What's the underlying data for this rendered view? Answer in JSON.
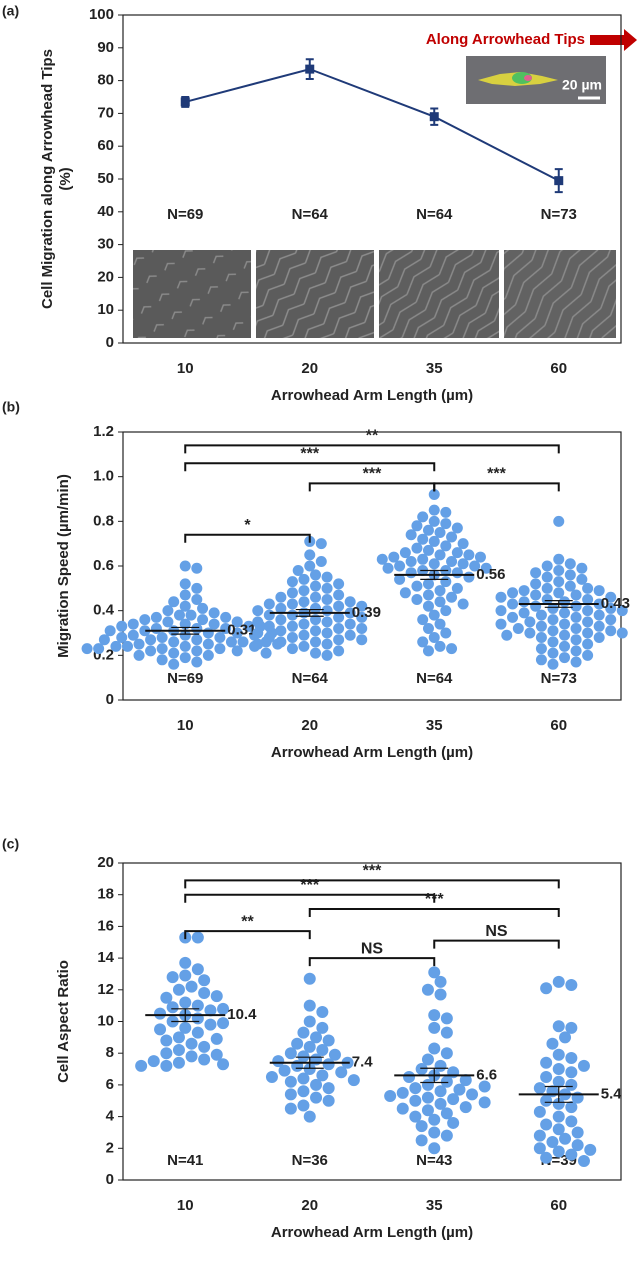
{
  "chart_data": [
    {
      "type": "line",
      "panel_label": "(a)",
      "ylabel": [
        "Cell Migration along Arrowhead Tips",
        "(%)"
      ],
      "xlabel": "Arrowhead Arm Length (µm)",
      "categories": [
        "10",
        "20",
        "35",
        "60"
      ],
      "values": [
        73.5,
        83.5,
        69,
        49.5
      ],
      "errors": [
        1.5,
        3,
        2.5,
        3.5
      ],
      "color": "#1f3a78",
      "ylim": [
        0,
        100
      ],
      "yticks": [
        0,
        10,
        20,
        30,
        40,
        50,
        60,
        70,
        80,
        90,
        100
      ],
      "n_labels": [
        "N=69",
        "N=64",
        "N=64",
        "N=73"
      ],
      "arrow_label": "Along Arrowhead Tips",
      "scale_bar": "20 µm"
    },
    {
      "type": "strip",
      "panel_label": "(b)",
      "ylabel": "Migration Speed (µm/min)",
      "xlabel": "Arrowhead Arm Length (µm)",
      "categories": [
        "10",
        "20",
        "35",
        "60"
      ],
      "color": "#64a0e6",
      "ylim": [
        0,
        1.2
      ],
      "yticks": [
        0,
        0.2,
        0.4,
        0.6,
        0.8,
        {
          "value": 1,
          "label": "1.0"
        },
        1.2
      ],
      "n_labels": [
        "N=69",
        "N=64",
        "N=64",
        "N=73"
      ],
      "groups": [
        {
          "mean": 0.31,
          "error": 0.015,
          "points": [
            0.6,
            0.59,
            0.52,
            0.5,
            0.47,
            0.45,
            0.44,
            0.42,
            0.41,
            0.4,
            0.39,
            0.38,
            0.38,
            0.37,
            0.37,
            0.36,
            0.36,
            0.35,
            0.35,
            0.34,
            0.34,
            0.34,
            0.33,
            0.33,
            0.33,
            0.32,
            0.32,
            0.32,
            0.31,
            0.31,
            0.31,
            0.3,
            0.3,
            0.3,
            0.29,
            0.29,
            0.29,
            0.28,
            0.28,
            0.28,
            0.27,
            0.27,
            0.27,
            0.26,
            0.26,
            0.26,
            0.26,
            0.25,
            0.25,
            0.25,
            0.24,
            0.24,
            0.24,
            0.24,
            0.23,
            0.23,
            0.23,
            0.23,
            0.22,
            0.22,
            0.22,
            0.21,
            0.21,
            0.2,
            0.2,
            0.19,
            0.18,
            0.17,
            0.16
          ]
        },
        {
          "mean": 0.39,
          "error": 0.015,
          "points": [
            0.71,
            0.7,
            0.65,
            0.62,
            0.6,
            0.58,
            0.56,
            0.55,
            0.54,
            0.53,
            0.52,
            0.51,
            0.5,
            0.49,
            0.48,
            0.47,
            0.46,
            0.46,
            0.45,
            0.44,
            0.44,
            0.43,
            0.43,
            0.42,
            0.42,
            0.41,
            0.41,
            0.4,
            0.4,
            0.39,
            0.39,
            0.38,
            0.38,
            0.37,
            0.37,
            0.36,
            0.36,
            0.35,
            0.35,
            0.34,
            0.34,
            0.33,
            0.33,
            0.32,
            0.32,
            0.31,
            0.31,
            0.3,
            0.3,
            0.29,
            0.29,
            0.28,
            0.28,
            0.27,
            0.27,
            0.26,
            0.26,
            0.25,
            0.25,
            0.24,
            0.23,
            0.22,
            0.21,
            0.2
          ]
        },
        {
          "mean": 0.56,
          "error": 0.02,
          "points": [
            0.92,
            0.85,
            0.84,
            0.82,
            0.8,
            0.79,
            0.78,
            0.77,
            0.76,
            0.75,
            0.74,
            0.73,
            0.72,
            0.71,
            0.7,
            0.69,
            0.68,
            0.67,
            0.66,
            0.66,
            0.65,
            0.65,
            0.64,
            0.64,
            0.63,
            0.63,
            0.62,
            0.62,
            0.61,
            0.61,
            0.6,
            0.6,
            0.59,
            0.59,
            0.58,
            0.58,
            0.57,
            0.57,
            0.56,
            0.55,
            0.54,
            0.53,
            0.52,
            0.51,
            0.5,
            0.49,
            0.48,
            0.47,
            0.46,
            0.45,
            0.44,
            0.43,
            0.42,
            0.4,
            0.38,
            0.36,
            0.34,
            0.32,
            0.3,
            0.28,
            0.26,
            0.24,
            0.23,
            0.22
          ]
        },
        {
          "mean": 0.43,
          "error": 0.015,
          "points": [
            0.8,
            0.63,
            0.61,
            0.6,
            0.59,
            0.58,
            0.57,
            0.56,
            0.55,
            0.54,
            0.53,
            0.52,
            0.51,
            0.5,
            0.5,
            0.49,
            0.49,
            0.48,
            0.48,
            0.47,
            0.47,
            0.46,
            0.46,
            0.45,
            0.45,
            0.44,
            0.44,
            0.43,
            0.43,
            0.42,
            0.42,
            0.41,
            0.41,
            0.4,
            0.4,
            0.39,
            0.39,
            0.38,
            0.38,
            0.37,
            0.37,
            0.36,
            0.36,
            0.35,
            0.35,
            0.34,
            0.34,
            0.33,
            0.33,
            0.32,
            0.32,
            0.31,
            0.31,
            0.3,
            0.3,
            0.29,
            0.29,
            0.28,
            0.28,
            0.27,
            0.26,
            0.25,
            0.24,
            0.23,
            0.22,
            0.21,
            0.2,
            0.19,
            0.18,
            0.17,
            0.16,
            0.3,
            0.4
          ]
        }
      ],
      "brackets": [
        {
          "between": [
            "10",
            "60"
          ],
          "y": 1.14,
          "label": "**"
        },
        {
          "between": [
            "10",
            "35"
          ],
          "y": 1.06,
          "label": "***"
        },
        {
          "between": [
            "20",
            "35"
          ],
          "y": 0.97,
          "label": "***"
        },
        {
          "between": [
            "35",
            "60"
          ],
          "y": 0.97,
          "label": "***"
        },
        {
          "between": [
            "10",
            "20"
          ],
          "y": 0.74,
          "label": "*"
        }
      ]
    },
    {
      "type": "strip",
      "panel_label": "(c)",
      "ylabel": "Cell Aspect Ratio",
      "xlabel": "Arrowhead Arm Length (µm)",
      "categories": [
        "10",
        "20",
        "35",
        "60"
      ],
      "color": "#64a0e6",
      "ylim": [
        0,
        20
      ],
      "yticks": [
        0,
        2,
        4,
        6,
        8,
        10,
        12,
        14,
        16,
        18,
        20
      ],
      "n_labels": [
        "N=41",
        "N=36",
        "N=43",
        "N=39"
      ],
      "groups": [
        {
          "mean": 10.4,
          "error": 0.4,
          "points": [
            15.3,
            15.3,
            13.7,
            13.3,
            12.9,
            12.8,
            12.6,
            12.2,
            12.0,
            11.8,
            11.5,
            11.2,
            11.0,
            10.9,
            10.7,
            10.5,
            10.4,
            10.2,
            10.0,
            9.8,
            9.6,
            9.5,
            9.3,
            9.0,
            8.8,
            8.6,
            8.4,
            8.2,
            8.0,
            7.9,
            7.8,
            7.6,
            7.5,
            7.4,
            7.3,
            7.2,
            7.2,
            11.6,
            10.8,
            9.9,
            8.9
          ]
        },
        {
          "mean": 7.4,
          "error": 0.35,
          "points": [
            12.7,
            11.0,
            10.6,
            10.0,
            9.6,
            9.3,
            9.0,
            8.8,
            8.6,
            8.4,
            8.2,
            8.0,
            7.9,
            7.8,
            7.6,
            7.5,
            7.4,
            7.3,
            7.2,
            7.0,
            6.9,
            6.8,
            6.6,
            6.5,
            6.4,
            6.2,
            6.0,
            5.8,
            5.6,
            5.4,
            5.2,
            5.0,
            4.7,
            4.5,
            4.0,
            6.3
          ]
        },
        {
          "mean": 6.6,
          "error": 0.45,
          "points": [
            13.1,
            12.5,
            12.0,
            11.7,
            10.4,
            10.2,
            9.6,
            9.3,
            8.3,
            8.0,
            7.6,
            7.2,
            7.0,
            6.8,
            6.6,
            6.5,
            6.3,
            6.2,
            6.0,
            5.8,
            5.7,
            5.6,
            5.5,
            5.4,
            5.3,
            5.2,
            5.1,
            5.0,
            4.9,
            4.8,
            4.6,
            4.4,
            4.2,
            4.0,
            3.8,
            3.6,
            3.4,
            3.0,
            2.8,
            2.5,
            2.0,
            5.9,
            4.5
          ]
        },
        {
          "mean": 5.4,
          "error": 0.5,
          "points": [
            12.5,
            12.3,
            12.1,
            9.7,
            9.6,
            9.0,
            8.6,
            7.9,
            7.7,
            7.4,
            7.2,
            7.0,
            6.8,
            6.5,
            6.2,
            6.0,
            5.8,
            5.6,
            5.4,
            5.2,
            5.0,
            4.8,
            4.6,
            4.3,
            4.0,
            3.7,
            3.5,
            3.2,
            3.0,
            2.8,
            2.6,
            2.4,
            2.2,
            2.0,
            1.9,
            1.8,
            1.6,
            1.4,
            1.2
          ]
        }
      ],
      "brackets": [
        {
          "between": [
            "10",
            "60"
          ],
          "y": 18.9,
          "label": "***"
        },
        {
          "between": [
            "10",
            "35"
          ],
          "y": 18.0,
          "label": "***"
        },
        {
          "between": [
            "20",
            "60"
          ],
          "y": 17.1,
          "label": "***"
        },
        {
          "between": [
            "10",
            "20"
          ],
          "y": 15.7,
          "label": "**"
        },
        {
          "between": [
            "35",
            "60"
          ],
          "y": 15.1,
          "label": "NS"
        },
        {
          "between": [
            "20",
            "35"
          ],
          "y": 14.0,
          "label": "NS"
        }
      ]
    }
  ]
}
